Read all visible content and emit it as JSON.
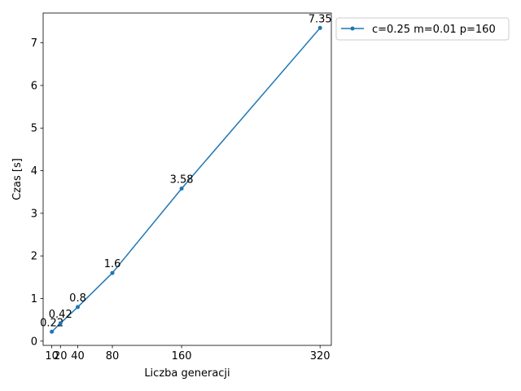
{
  "chart_data": {
    "type": "line",
    "xlabel": "Liczba generacji",
    "ylabel": "Czas [s]",
    "xlim": [
      0,
      333
    ],
    "ylim": [
      -0.1,
      7.7
    ],
    "xticks": [
      10,
      20,
      40,
      80,
      160,
      320
    ],
    "yticks": [
      0,
      1,
      2,
      3,
      4,
      5,
      6,
      7
    ],
    "grid": false,
    "legend_position": "outside-top-right",
    "series": [
      {
        "name": "c=0.25 m=0.01 p=160",
        "color": "#1f77b4",
        "marker": "circle",
        "x": [
          10,
          20,
          40,
          80,
          160,
          320
        ],
        "y": [
          0.22,
          0.42,
          0.8,
          1.6,
          3.58,
          7.35
        ],
        "data_labels": [
          "0.22",
          "0.42",
          "0.8",
          "1.6",
          "3.58",
          "7.35"
        ]
      }
    ]
  }
}
